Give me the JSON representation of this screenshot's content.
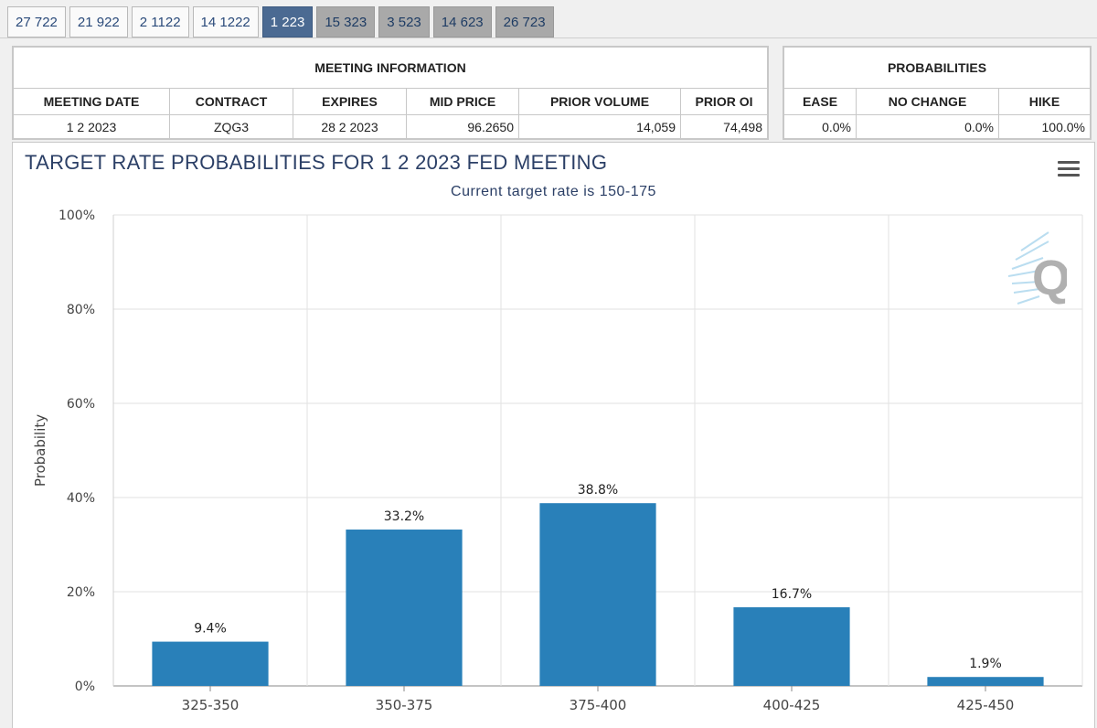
{
  "tabs": [
    {
      "label": "27 722",
      "state": "past"
    },
    {
      "label": "21 922",
      "state": "past"
    },
    {
      "label": "2 1122",
      "state": "past"
    },
    {
      "label": "14 1222",
      "state": "past"
    },
    {
      "label": "1 223",
      "state": "active"
    },
    {
      "label": "15 323",
      "state": "future"
    },
    {
      "label": "3 523",
      "state": "future"
    },
    {
      "label": "14 623",
      "state": "future"
    },
    {
      "label": "26 723",
      "state": "future"
    }
  ],
  "meeting_info": {
    "caption": "MEETING INFORMATION",
    "headers": [
      "MEETING DATE",
      "CONTRACT",
      "EXPIRES",
      "MID PRICE",
      "PRIOR VOLUME",
      "PRIOR OI"
    ],
    "values": [
      "1 2 2023",
      "ZQG3",
      "28 2 2023",
      "96.2650",
      "14,059",
      "74,498"
    ]
  },
  "probabilities": {
    "caption": "PROBABILITIES",
    "headers": [
      "EASE",
      "NO CHANGE",
      "HIKE"
    ],
    "values": [
      "0.0%",
      "0.0%",
      "100.0%"
    ]
  },
  "chart": {
    "title": "TARGET RATE PROBABILITIES FOR 1 2 2023 FED MEETING",
    "subtitle": "Current target rate is 150-175"
  },
  "chart_data": {
    "type": "bar",
    "categories": [
      "325-350",
      "350-375",
      "375-400",
      "400-425",
      "425-450"
    ],
    "values": [
      9.4,
      33.2,
      38.8,
      16.7,
      1.9
    ],
    "data_labels": [
      "9.4%",
      "33.2%",
      "38.8%",
      "16.7%",
      "1.9%"
    ],
    "ylabel": "Probability",
    "ylim": [
      0,
      100
    ],
    "yticks": [
      "0%",
      "20%",
      "40%",
      "60%",
      "80%",
      "100%"
    ],
    "grid": true,
    "bar_color": "#2980b9"
  },
  "colors": {
    "active_tab": "#4b6a92",
    "future_tab": "#a9a9a9",
    "title": "#2b3f66"
  }
}
